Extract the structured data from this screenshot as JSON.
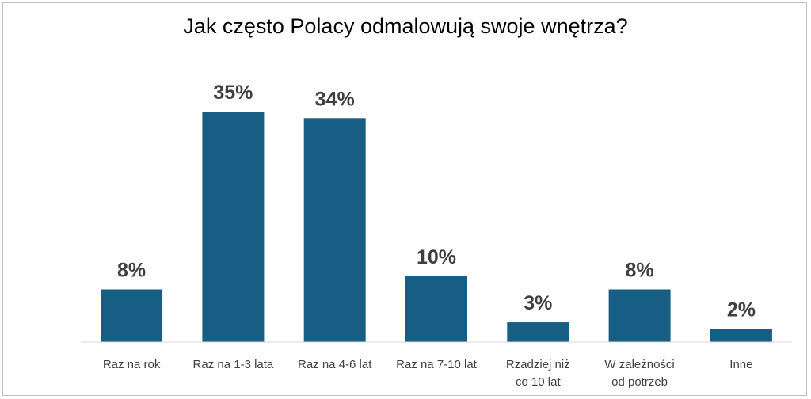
{
  "chart_data": {
    "type": "bar",
    "title": "Jak często Polacy odmalowują swoje wnętrza?",
    "categories": [
      [
        "Raz na rok"
      ],
      [
        "Raz na 1-3 lata"
      ],
      [
        "Raz na 4-6 lat"
      ],
      [
        "Raz na 7-10 lat"
      ],
      [
        "Rzadziej niż",
        "co 10 lat"
      ],
      [
        "W zależności",
        "od potrzeb"
      ],
      [
        "Inne"
      ]
    ],
    "values": [
      8,
      35,
      34,
      10,
      3,
      8,
      2
    ],
    "value_labels": [
      "8%",
      "35%",
      "34%",
      "10%",
      "3%",
      "8%",
      "2%"
    ],
    "unit": "%",
    "xlabel": "",
    "ylabel": "",
    "grid": false,
    "legend": "none",
    "bar_color": "#165E83",
    "axis_color": "#d9d9d9"
  }
}
